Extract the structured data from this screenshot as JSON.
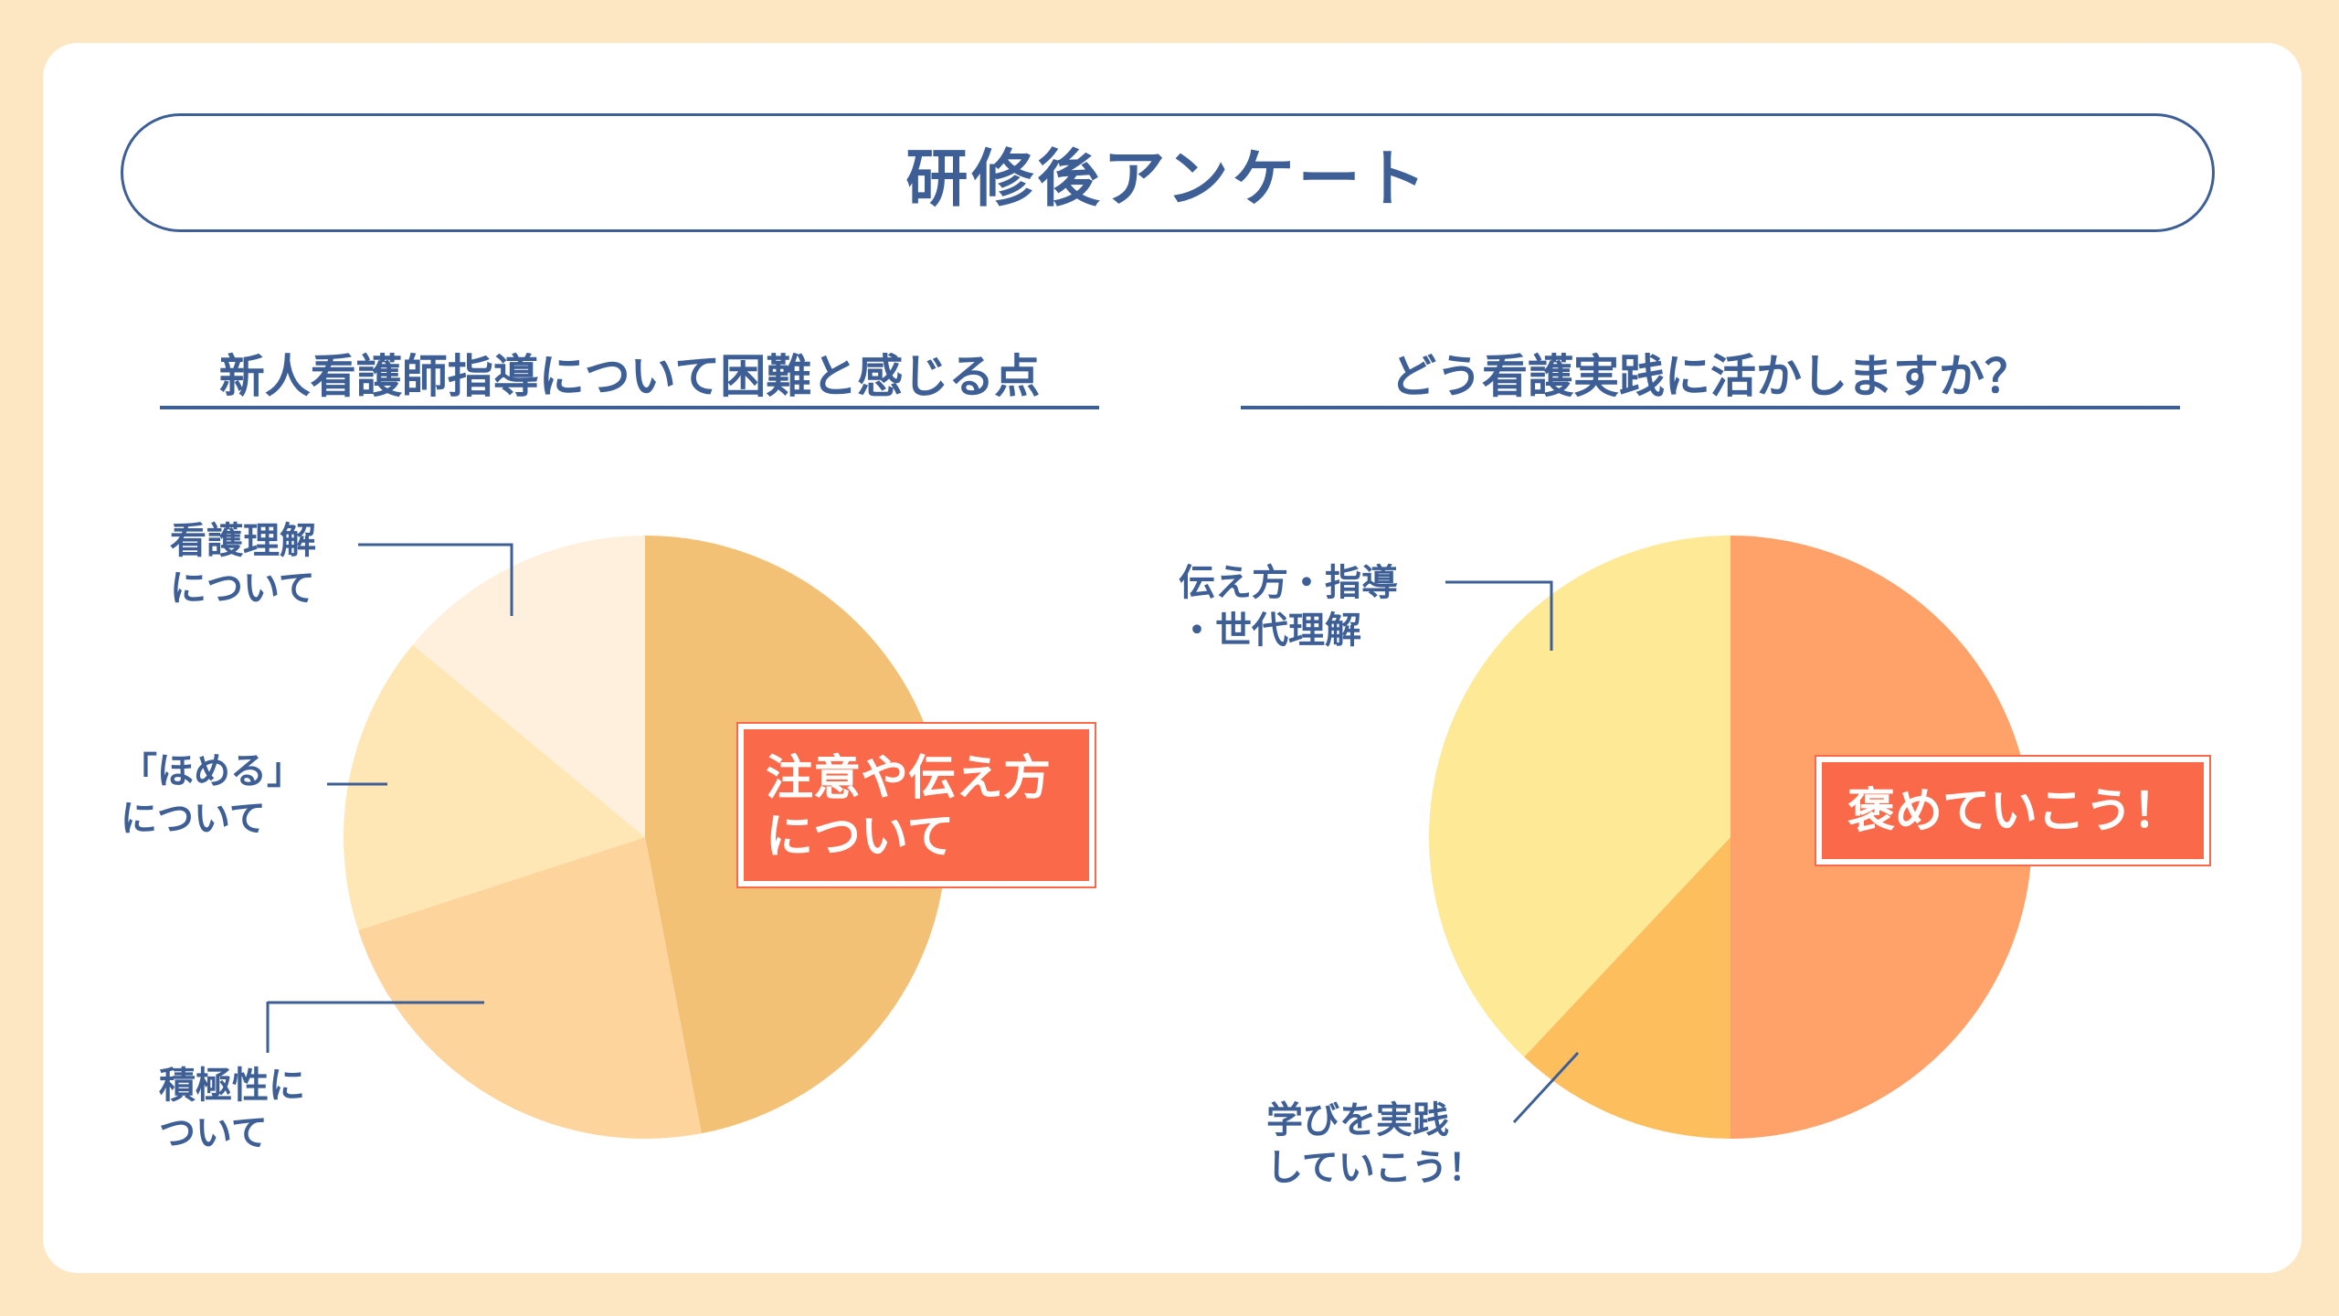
{
  "page": {
    "title": "研修後アンケート"
  },
  "chart_data": [
    {
      "type": "pie",
      "title": "新人看護師指導について困難と感じる点",
      "slices": [
        {
          "label": "注意や伝え方\nについて",
          "value": 47,
          "color": "#f3c175"
        },
        {
          "label": "積極性に\nついて",
          "value": 23,
          "color": "#fdd59c"
        },
        {
          "label": "「ほめる」\nについて",
          "value": 16,
          "color": "#fee6b5"
        },
        {
          "label": "看護理解\nについて",
          "value": 14,
          "color": "#fef0dd"
        }
      ]
    },
    {
      "type": "pie",
      "title": "どう看護実践に活かしますか？",
      "slices": [
        {
          "label": "褒めていこう！",
          "value": 50,
          "color": "#fea26a"
        },
        {
          "label": "学びを実践\nしていこう！",
          "value": 12,
          "color": "#fdbe5d"
        },
        {
          "label": "伝え方・指導\n・世代理解",
          "value": 38,
          "color": "#fee996"
        }
      ]
    }
  ]
}
